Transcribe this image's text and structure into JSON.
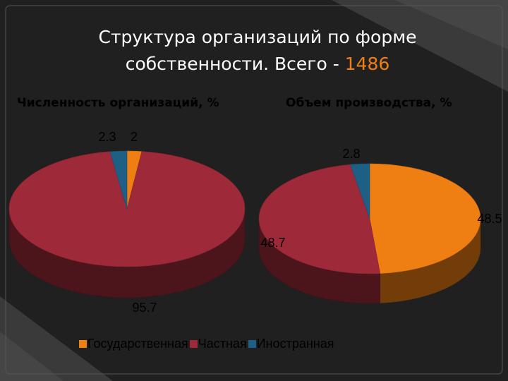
{
  "title": {
    "line1": "Структура организаций по форме",
    "line2_prefix": "собственности. Всего - ",
    "line2_total": "1486",
    "total_color": "#f07f13"
  },
  "legend": [
    {
      "label": "Государственная",
      "color": "#f07f13"
    },
    {
      "label": "Частная",
      "color": "#9e2a39"
    },
    {
      "label": "Иностранная",
      "color": "#1e5f86"
    }
  ],
  "chart_data": [
    {
      "type": "pie",
      "title": "Численность организаций, %",
      "categories": [
        "Государственная",
        "Частная",
        "Иностранная"
      ],
      "values": [
        2,
        95.7,
        2.3
      ],
      "data_labels": [
        "2",
        "95.7",
        "2.3"
      ],
      "legend": "bottom"
    },
    {
      "type": "pie",
      "title": "Объем производства, %",
      "categories": [
        "Государственная",
        "Частная",
        "Иностранная"
      ],
      "values": [
        48.5,
        48.7,
        2.8
      ],
      "data_labels": [
        "48.5",
        "48.7",
        "2.8"
      ],
      "legend": "bottom"
    }
  ]
}
